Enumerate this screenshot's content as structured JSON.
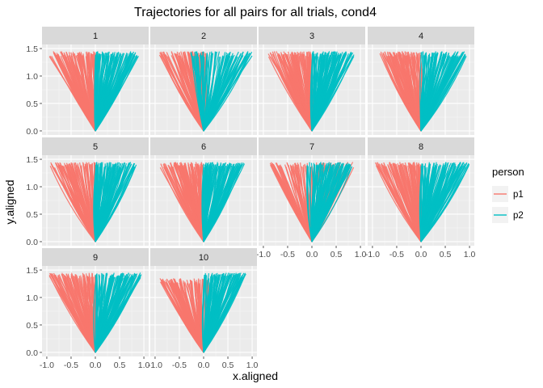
{
  "chart_data": {
    "type": "line",
    "title": "Trajectories for all pairs for all trials, cond4",
    "xlabel": "x.aligned",
    "ylabel": "y.aligned",
    "xlim": [
      -1.0,
      1.0
    ],
    "ylim": [
      0.0,
      1.5
    ],
    "x_ticks": [
      "-1.0",
      "-0.5",
      "0.0",
      "0.5",
      "1.0"
    ],
    "y_ticks": [
      "0.0",
      "0.5",
      "1.0",
      "1.5"
    ],
    "grid": true,
    "legend": {
      "title": "person",
      "placement": "right",
      "entries": [
        {
          "name": "p1",
          "color": "#F8766D"
        },
        {
          "name": "p2",
          "color": "#00BFC4"
        }
      ]
    },
    "panels": [
      {
        "label": "1",
        "p1": {
          "x_range": [
            -0.95,
            0.0
          ],
          "y_range": [
            0.0,
            1.45
          ]
        },
        "p2": {
          "x_range": [
            0.0,
            0.9
          ],
          "y_range": [
            0.0,
            1.45
          ]
        }
      },
      {
        "label": "2",
        "p1": {
          "x_range": [
            -0.95,
            0.05
          ],
          "y_range": [
            0.0,
            1.45
          ]
        },
        "p2": {
          "x_range": [
            -0.3,
            1.0
          ],
          "y_range": [
            0.0,
            1.45
          ]
        }
      },
      {
        "label": "3",
        "p1": {
          "x_range": [
            -0.9,
            0.0
          ],
          "y_range": [
            0.0,
            1.45
          ]
        },
        "p2": {
          "x_range": [
            0.0,
            0.9
          ],
          "y_range": [
            0.0,
            1.45
          ]
        }
      },
      {
        "label": "4",
        "p1": {
          "x_range": [
            -0.85,
            0.0
          ],
          "y_range": [
            0.0,
            1.45
          ]
        },
        "p2": {
          "x_range": [
            0.0,
            0.95
          ],
          "y_range": [
            0.0,
            1.45
          ]
        }
      },
      {
        "label": "5",
        "p1": {
          "x_range": [
            -0.95,
            0.05
          ],
          "y_range": [
            0.0,
            1.45
          ]
        },
        "p2": {
          "x_range": [
            0.0,
            0.85
          ],
          "y_range": [
            0.0,
            1.45
          ]
        }
      },
      {
        "label": "6",
        "p1": {
          "x_range": [
            -0.9,
            0.0
          ],
          "y_range": [
            0.0,
            1.45
          ]
        },
        "p2": {
          "x_range": [
            0.0,
            0.85
          ],
          "y_range": [
            0.0,
            1.45
          ]
        }
      },
      {
        "label": "7",
        "p1": {
          "x_range": [
            -0.9,
            0.9
          ],
          "y_range": [
            0.0,
            1.45
          ]
        },
        "p2": {
          "x_range": [
            -0.1,
            0.85
          ],
          "y_range": [
            0.0,
            1.45
          ]
        }
      },
      {
        "label": "8",
        "p1": {
          "x_range": [
            -0.95,
            0.0
          ],
          "y_range": [
            0.0,
            1.45
          ]
        },
        "p2": {
          "x_range": [
            0.0,
            1.0
          ],
          "y_range": [
            0.0,
            1.45
          ]
        }
      },
      {
        "label": "9",
        "p1": {
          "x_range": [
            -0.95,
            0.0
          ],
          "y_range": [
            0.0,
            1.45
          ]
        },
        "p2": {
          "x_range": [
            0.0,
            0.95
          ],
          "y_range": [
            0.0,
            1.45
          ]
        }
      },
      {
        "label": "10",
        "p1": {
          "x_range": [
            -0.9,
            0.1
          ],
          "y_range": [
            0.0,
            1.35
          ]
        },
        "p2": {
          "x_range": [
            0.0,
            0.9
          ],
          "y_range": [
            0.0,
            1.45
          ]
        }
      }
    ]
  }
}
